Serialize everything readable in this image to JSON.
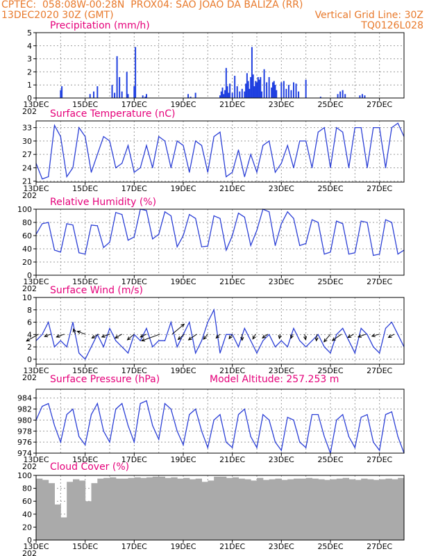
{
  "header": {
    "line1": "CPTEC:  058:08W-00:28N  PROX04: SAO JOAO DA BALIZA (RR)",
    "line2_left": "13DEC2020 30Z (GMT)",
    "line2_right": "Vertical Grid Line: 30Z",
    "line3_right": "TQ0126L028"
  },
  "colors": {
    "line": "#2b3fd6",
    "bars": "#1f3fe0",
    "cloud": "#aaaaaa",
    "title": "#e5007a",
    "header": "#e8792b"
  },
  "x_tick_labels": [
    "13DEC",
    "15DEC",
    "17DEC",
    "19DEC",
    "21DEC",
    "23DEC",
    "25DEC",
    "27DEC"
  ],
  "x_tick_stub": "202",
  "chart_data": [
    {
      "type": "bar",
      "title": "Precipitation (mm/h)",
      "ylim": [
        0,
        5
      ],
      "yticks": [
        "0",
        "1",
        "2",
        "3",
        "4",
        "5"
      ],
      "x_range_days": [
        0,
        15
      ],
      "x": [
        1.0,
        1.05,
        2.2,
        2.35,
        2.5,
        3.1,
        3.2,
        3.3,
        3.4,
        3.5,
        3.7,
        3.75,
        4.0,
        4.05,
        4.35,
        4.45,
        4.5,
        6.2,
        6.3,
        6.5,
        7.5,
        7.55,
        7.6,
        7.65,
        7.7,
        7.75,
        7.8,
        7.85,
        7.9,
        8.0,
        8.1,
        8.2,
        8.3,
        8.4,
        8.5,
        8.55,
        8.6,
        8.65,
        8.7,
        8.75,
        8.8,
        8.85,
        8.9,
        8.95,
        9.0,
        9.05,
        9.1,
        9.15,
        9.2,
        9.3,
        9.4,
        9.5,
        9.6,
        9.65,
        9.7,
        9.75,
        9.8,
        10.0,
        10.1,
        10.2,
        10.3,
        10.4,
        10.5,
        10.6,
        10.7,
        11.0,
        11.6,
        12.3,
        12.4,
        12.5,
        12.6,
        13.2,
        13.3,
        13.4
      ],
      "values": [
        0.6,
        0.9,
        0.3,
        0.5,
        0.9,
        1.0,
        0.4,
        3.2,
        1.6,
        0.5,
        2.0,
        0.3,
        0.9,
        3.9,
        0.2,
        0.1,
        0.3,
        0.3,
        0.1,
        0.4,
        0.2,
        0.5,
        0.8,
        0.3,
        0.6,
        2.3,
        0.9,
        0.4,
        1.1,
        0.4,
        1.7,
        0.9,
        0.5,
        0.7,
        0.5,
        1.1,
        1.9,
        1.3,
        0.7,
        1.6,
        3.9,
        1.8,
        0.9,
        1.3,
        1.2,
        1.6,
        1.4,
        1.6,
        0.5,
        2.2,
        1.2,
        1.6,
        0.8,
        1.2,
        1.3,
        1.0,
        0.6,
        1.2,
        1.3,
        0.7,
        1.0,
        0.6,
        1.2,
        1.1,
        0.5,
        1.4,
        0.1,
        0.3,
        0.5,
        0.6,
        0.3,
        0.2,
        0.3,
        0.2
      ]
    },
    {
      "type": "line",
      "title": "Surface Temperature (nC)",
      "ylim": [
        20.8,
        34.5
      ],
      "yticks": [
        "21",
        "24",
        "27",
        "30",
        "33"
      ],
      "x_range_days": [
        0,
        15
      ],
      "x": [
        0.0,
        0.25,
        0.5,
        0.75,
        1.0,
        1.25,
        1.5,
        1.75,
        2.0,
        2.25,
        2.5,
        2.75,
        3.0,
        3.25,
        3.5,
        3.75,
        4.0,
        4.25,
        4.5,
        4.75,
        5.0,
        5.25,
        5.5,
        5.75,
        6.0,
        6.25,
        6.5,
        6.75,
        7.0,
        7.25,
        7.5,
        7.75,
        8.0,
        8.25,
        8.5,
        8.75,
        9.0,
        9.25,
        9.5,
        9.75,
        10.0,
        10.25,
        10.5,
        10.75,
        11.0,
        11.25,
        11.5,
        11.75,
        12.0,
        12.25,
        12.5,
        12.75,
        13.0,
        13.25,
        13.5,
        13.75,
        14.0,
        14.25,
        14.5,
        14.75,
        15.0
      ],
      "values": [
        25,
        21.5,
        22,
        33.5,
        31,
        22,
        24,
        33,
        31,
        23,
        27,
        31,
        30,
        24,
        25,
        29,
        23,
        24,
        29,
        24,
        31,
        30,
        24,
        30,
        29,
        23,
        30,
        29,
        23,
        31,
        32,
        22,
        23,
        28,
        22,
        27,
        23,
        29,
        30,
        23,
        25,
        29,
        24,
        30,
        30,
        24,
        32,
        33,
        24,
        33,
        32,
        24,
        33,
        33,
        24,
        33,
        33,
        24,
        33,
        34,
        31
      ]
    },
    {
      "type": "line",
      "title": "Relative Humidity (%)",
      "ylim": [
        0,
        100
      ],
      "yticks": [
        "0",
        "20",
        "40",
        "60",
        "80",
        "100"
      ],
      "x_range_days": [
        0,
        15
      ],
      "x": [
        0.0,
        0.25,
        0.5,
        0.75,
        1.0,
        1.25,
        1.5,
        1.75,
        2.0,
        2.25,
        2.5,
        2.75,
        3.0,
        3.25,
        3.5,
        3.75,
        4.0,
        4.25,
        4.5,
        4.75,
        5.0,
        5.25,
        5.5,
        5.75,
        6.0,
        6.25,
        6.5,
        6.75,
        7.0,
        7.25,
        7.5,
        7.75,
        8.0,
        8.25,
        8.5,
        8.75,
        9.0,
        9.25,
        9.5,
        9.75,
        10.0,
        10.25,
        10.5,
        10.75,
        11.0,
        11.25,
        11.5,
        11.75,
        12.0,
        12.25,
        12.5,
        12.75,
        13.0,
        13.25,
        13.5,
        13.75,
        14.0,
        14.25,
        14.5,
        14.75,
        15.0
      ],
      "values": [
        62,
        78,
        80,
        38,
        35,
        78,
        76,
        34,
        32,
        76,
        75,
        42,
        50,
        95,
        92,
        53,
        58,
        100,
        98,
        55,
        62,
        96,
        90,
        43,
        60,
        92,
        86,
        43,
        44,
        90,
        86,
        38,
        60,
        94,
        88,
        45,
        68,
        100,
        96,
        45,
        78,
        96,
        86,
        45,
        48,
        84,
        80,
        32,
        35,
        82,
        78,
        32,
        34,
        82,
        80,
        30,
        32,
        84,
        80,
        32,
        38
      ]
    },
    {
      "type": "line",
      "title": "Surface Wind (m/s)",
      "ylim": [
        -0.8,
        10
      ],
      "yticks": [
        "0",
        "2",
        "4",
        "6",
        "8",
        "10"
      ],
      "x_range_days": [
        0,
        15
      ],
      "x": [
        0.0,
        0.25,
        0.5,
        0.75,
        1.0,
        1.25,
        1.5,
        1.75,
        2.0,
        2.25,
        2.5,
        2.75,
        3.0,
        3.25,
        3.5,
        3.75,
        4.0,
        4.25,
        4.5,
        4.75,
        5.0,
        5.25,
        5.5,
        5.75,
        6.0,
        6.25,
        6.5,
        6.75,
        7.0,
        7.25,
        7.5,
        7.75,
        8.0,
        8.25,
        8.5,
        8.75,
        9.0,
        9.25,
        9.5,
        9.75,
        10.0,
        10.25,
        10.5,
        10.75,
        11.0,
        11.25,
        11.5,
        11.75,
        12.0,
        12.25,
        12.5,
        12.75,
        13.0,
        13.25,
        13.5,
        13.75,
        14.0,
        14.25,
        14.5,
        14.75,
        15.0
      ],
      "values": [
        3,
        4,
        6,
        2,
        3,
        2,
        6,
        1,
        0,
        2,
        4,
        2,
        5,
        3,
        2,
        1,
        4,
        3,
        5,
        2,
        3,
        3,
        6,
        2,
        4,
        6,
        1,
        3,
        6,
        8,
        1,
        4,
        4,
        2,
        5,
        3,
        1,
        3,
        4,
        2,
        3,
        2,
        5,
        3,
        2,
        3,
        4,
        2,
        1,
        4,
        5,
        3,
        1,
        5,
        4,
        2,
        1,
        5,
        6,
        4,
        2
      ],
      "arrows_angle_deg": [
        210,
        200,
        200,
        110,
        160,
        210,
        200,
        210,
        220,
        205,
        200,
        40,
        220,
        215,
        230,
        225,
        235,
        270,
        240,
        215,
        260,
        250,
        280,
        265,
        230,
        215,
        210,
        200,
        195,
        210
      ],
      "arrows_x": [
        0.1,
        0.6,
        1.15,
        1.6,
        2.0,
        2.55,
        3.0,
        3.5,
        4.0,
        4.5,
        5.05,
        5.55,
        6.05,
        6.55,
        7.0,
        7.5,
        8.0,
        8.4,
        8.95,
        9.45,
        9.95,
        10.45,
        10.95,
        11.45,
        12.0,
        12.45,
        12.95,
        13.45,
        14.0,
        14.6
      ],
      "arrows_len": [
        2.5,
        1.2,
        1.5,
        1.0,
        1.5,
        1.4,
        1.5,
        1.4,
        1.6,
        1.2,
        3.5,
        2.8,
        1.5,
        1.8,
        1.2,
        1.0,
        1.0,
        1.1,
        1.0,
        1.2,
        0.8,
        0.8,
        1.0,
        1.2,
        1.8,
        2.0,
        1.2,
        1.5,
        1.4,
        1.2
      ]
    },
    {
      "type": "line",
      "title": "Surface Pressure (hPa)",
      "subtitle": "Model Altitude: 257.253 m",
      "ylim": [
        974,
        985.6
      ],
      "yticks": [
        "974",
        "976",
        "978",
        "980",
        "982",
        "984"
      ],
      "x_range_days": [
        0,
        15
      ],
      "x": [
        0.0,
        0.25,
        0.5,
        0.75,
        1.0,
        1.25,
        1.5,
        1.75,
        2.0,
        2.25,
        2.5,
        2.75,
        3.0,
        3.25,
        3.5,
        3.75,
        4.0,
        4.25,
        4.5,
        4.75,
        5.0,
        5.25,
        5.5,
        5.75,
        6.0,
        6.25,
        6.5,
        6.75,
        7.0,
        7.25,
        7.5,
        7.75,
        8.0,
        8.25,
        8.5,
        8.75,
        9.0,
        9.25,
        9.5,
        9.75,
        10.0,
        10.25,
        10.5,
        10.75,
        11.0,
        11.25,
        11.5,
        11.75,
        12.0,
        12.25,
        12.5,
        12.75,
        13.0,
        13.25,
        13.5,
        13.75,
        14.0,
        14.25,
        14.5,
        14.75,
        15.0
      ],
      "values": [
        980,
        982.5,
        983,
        979,
        976,
        981,
        982,
        977,
        975.5,
        981,
        983,
        978,
        976,
        982,
        983,
        979,
        976,
        983,
        983.5,
        979,
        976.5,
        983,
        982,
        978,
        975.5,
        981,
        982,
        978,
        975,
        980,
        981,
        976,
        975,
        981,
        982,
        977,
        975,
        981,
        980,
        976,
        974.5,
        980.5,
        980,
        976,
        975,
        981,
        981,
        977,
        974,
        980,
        981,
        977,
        975,
        980.5,
        981,
        976,
        974.5,
        981,
        981.5,
        977,
        974
      ]
    },
    {
      "type": "bar",
      "title": "Cloud Cover (%)",
      "ylim": [
        0,
        100
      ],
      "yticks": [
        "0",
        "20",
        "40",
        "60",
        "80",
        "100"
      ],
      "x_range_days": [
        0,
        15
      ],
      "x": [
        0.0,
        0.25,
        0.5,
        0.75,
        1.0,
        1.25,
        1.5,
        1.75,
        2.0,
        2.25,
        2.5,
        2.75,
        3.0,
        3.25,
        3.5,
        3.75,
        4.0,
        4.25,
        4.5,
        4.75,
        5.0,
        5.25,
        5.5,
        5.75,
        6.0,
        6.25,
        6.5,
        6.75,
        7.0,
        7.25,
        7.5,
        7.75,
        8.0,
        8.25,
        8.5,
        8.75,
        9.0,
        9.25,
        9.5,
        9.75,
        10.0,
        10.25,
        10.5,
        10.75,
        11.0,
        11.25,
        11.5,
        11.75,
        12.0,
        12.25,
        12.5,
        12.75,
        13.0,
        13.25,
        13.5,
        13.75,
        14.0,
        14.25,
        14.5,
        14.75
      ],
      "values": [
        95,
        93,
        88,
        55,
        35,
        90,
        94,
        92,
        60,
        88,
        95,
        96,
        97,
        95,
        95,
        96,
        97,
        96,
        97,
        98,
        98,
        96,
        97,
        95,
        96,
        94,
        95,
        90,
        92,
        98,
        98,
        96,
        97,
        95,
        94,
        92,
        96,
        93,
        94,
        95,
        93,
        94,
        95,
        95,
        96,
        95,
        94,
        93,
        94,
        95,
        96,
        94,
        93,
        95,
        94,
        93,
        94,
        95,
        94,
        96
      ]
    }
  ]
}
